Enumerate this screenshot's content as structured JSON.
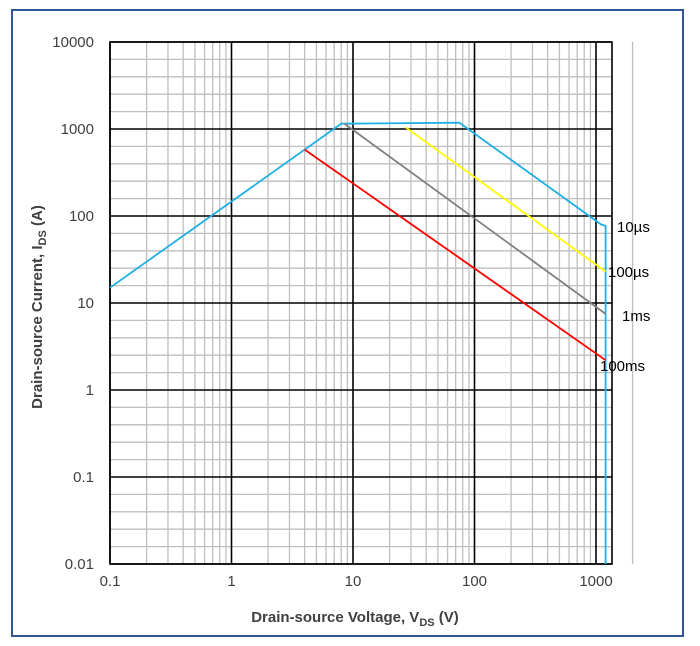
{
  "chart_data": {
    "type": "line",
    "x_scale": "log",
    "y_scale": "log",
    "xlim": [
      0.1,
      2000
    ],
    "ylim": [
      0.01,
      10000
    ],
    "grid": true,
    "x_ticks": [
      "0.1",
      "1",
      "10",
      "100",
      "1000"
    ],
    "y_ticks": [
      "0.01",
      "0.1",
      "1",
      "10",
      "100",
      "1000",
      "10000"
    ],
    "xlabel": {
      "main": "Drain-source Voltage, V",
      "sub": "DS",
      "unit": " (V)"
    },
    "ylabel": {
      "main": "Drain-source Current, I",
      "sub": "DS",
      "unit": " (A)"
    },
    "series": [
      {
        "name": "10µs",
        "color": "#1fb0e6",
        "x": [
          0.1,
          8,
          75,
          1100,
          1200,
          1200
        ],
        "y": [
          15,
          1150,
          1180,
          80,
          77,
          0.01
        ]
      },
      {
        "name": "100µs",
        "color": "#ffff00",
        "x": [
          27,
          1200
        ],
        "y": [
          1050,
          23
        ]
      },
      {
        "name": "1ms",
        "color": "#808080",
        "x": [
          8.5,
          1200
        ],
        "y": [
          1150,
          7.5
        ]
      },
      {
        "name": "100ms",
        "color": "#ff0000",
        "x": [
          4,
          1200
        ],
        "y": [
          580,
          2.2
        ]
      }
    ],
    "annotations": [
      "10µs",
      "100µs",
      "1ms",
      "100ms"
    ]
  },
  "colors": {
    "frame": "#2f5597",
    "major_grid": "#000000",
    "minor_grid": "#bfbfbf"
  }
}
